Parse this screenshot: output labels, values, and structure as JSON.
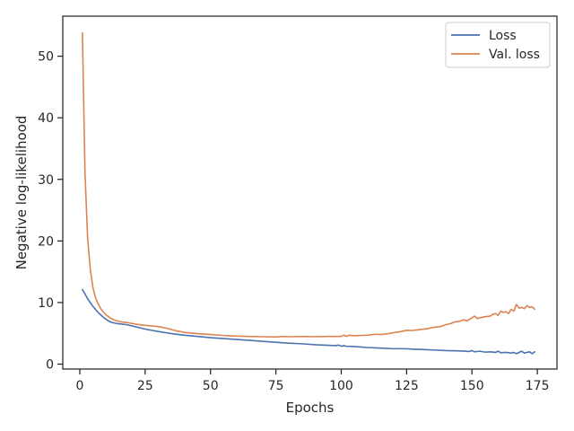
{
  "chart_data": {
    "type": "line",
    "title": "",
    "xlabel": "Epochs",
    "ylabel": "Negative log-likelihood",
    "xlim": [
      -6.5,
      182.5
    ],
    "ylim": [
      -0.8,
      56.5
    ],
    "xticks": [
      0,
      25,
      50,
      75,
      100,
      125,
      150,
      175
    ],
    "yticks": [
      0,
      10,
      20,
      30,
      40,
      50
    ],
    "grid": false,
    "legend": {
      "position": "top-right"
    },
    "series": [
      {
        "name": "Loss",
        "color": "#4c72b0",
        "x": [
          1,
          2,
          3,
          4,
          5,
          6,
          7,
          8,
          9,
          10,
          11,
          12,
          13,
          14,
          15,
          16,
          18,
          20,
          22,
          24,
          26,
          28,
          30,
          33,
          36,
          40,
          45,
          50,
          55,
          60,
          65,
          70,
          75,
          80,
          85,
          90,
          95,
          98,
          99,
          100,
          101,
          102,
          105,
          110,
          115,
          120,
          125,
          128,
          130,
          135,
          140,
          145,
          147,
          149,
          150,
          151,
          153,
          155,
          157,
          159,
          160,
          161,
          163,
          165,
          166,
          167,
          168,
          169,
          170,
          171,
          172,
          173,
          174
        ],
        "values": [
          12.1,
          11.4,
          10.6,
          10.0,
          9.4,
          8.9,
          8.4,
          8.0,
          7.6,
          7.3,
          7.0,
          6.8,
          6.7,
          6.6,
          6.55,
          6.5,
          6.4,
          6.2,
          6.0,
          5.8,
          5.6,
          5.45,
          5.3,
          5.1,
          4.9,
          4.7,
          4.5,
          4.3,
          4.15,
          4.0,
          3.85,
          3.7,
          3.55,
          3.4,
          3.3,
          3.15,
          3.05,
          3.0,
          3.1,
          2.9,
          3.0,
          2.9,
          2.85,
          2.7,
          2.6,
          2.5,
          2.5,
          2.4,
          2.4,
          2.3,
          2.2,
          2.15,
          2.1,
          2.05,
          2.2,
          2.0,
          2.1,
          1.95,
          2.0,
          1.9,
          2.1,
          1.85,
          1.9,
          1.8,
          1.9,
          1.7,
          1.9,
          2.1,
          1.8,
          1.9,
          2.0,
          1.7,
          2.0
        ]
      },
      {
        "name": "Val. loss",
        "color": "#dd8452",
        "x": [
          1,
          2,
          3,
          4,
          5,
          6,
          7,
          8,
          9,
          10,
          11,
          12,
          13,
          14,
          15,
          16,
          18,
          20,
          22,
          25,
          30,
          33,
          36,
          40,
          45,
          50,
          55,
          60,
          65,
          70,
          75,
          78,
          80,
          85,
          90,
          95,
          100,
          101,
          102,
          103,
          105,
          107,
          110,
          113,
          115,
          118,
          120,
          123,
          125,
          127,
          130,
          133,
          135,
          138,
          140,
          142,
          143,
          145,
          147,
          148,
          150,
          151,
          152,
          153,
          155,
          157,
          158,
          159,
          160,
          161,
          162,
          163,
          164,
          165,
          166,
          167,
          168,
          169,
          170,
          171,
          172,
          173,
          174
        ],
        "values": [
          53.8,
          31.0,
          20.5,
          15.5,
          12.5,
          10.8,
          9.8,
          9.0,
          8.5,
          8.0,
          7.7,
          7.4,
          7.2,
          7.05,
          6.95,
          6.85,
          6.75,
          6.6,
          6.45,
          6.3,
          6.1,
          5.85,
          5.5,
          5.15,
          4.95,
          4.8,
          4.65,
          4.55,
          4.5,
          4.45,
          4.4,
          4.5,
          4.45,
          4.5,
          4.45,
          4.5,
          4.5,
          4.7,
          4.5,
          4.7,
          4.6,
          4.65,
          4.7,
          4.85,
          4.8,
          4.95,
          5.1,
          5.3,
          5.5,
          5.45,
          5.6,
          5.75,
          5.95,
          6.1,
          6.4,
          6.6,
          6.8,
          6.95,
          7.2,
          7.0,
          7.5,
          7.8,
          7.4,
          7.5,
          7.7,
          7.8,
          8.1,
          8.2,
          7.9,
          8.6,
          8.4,
          8.5,
          8.2,
          8.9,
          8.6,
          9.7,
          9.1,
          9.2,
          9.0,
          9.5,
          9.2,
          9.3,
          8.9
        ]
      }
    ]
  }
}
